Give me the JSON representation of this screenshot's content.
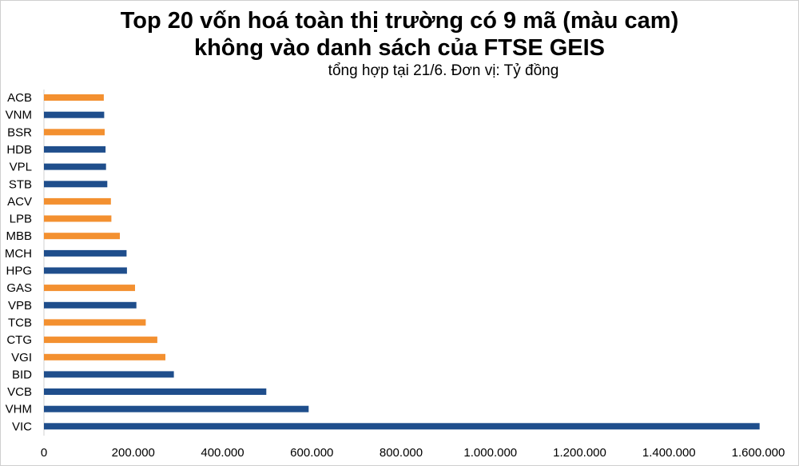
{
  "chart_data": {
    "type": "bar",
    "orientation": "horizontal",
    "title": "Top 20 vốn hoá toàn thị trường có 9 mã (màu cam)",
    "title_line2": "không vào danh sách của FTSE GEIS",
    "subtitle": "tổng hợp tại 21/6. Đơn vị: Tỷ đồng",
    "xlim": [
      0,
      1600000
    ],
    "xticks": [
      0,
      200000,
      400000,
      600000,
      800000,
      1000000,
      1200000,
      1400000,
      1600000
    ],
    "xtick_labels": [
      "0",
      "200.000",
      "400.000",
      "600.000",
      "800.000",
      "1.000.000",
      "1.200.000",
      "1.400.000",
      "1.600.000"
    ],
    "colors": {
      "in_list": "#1f4e8c",
      "not_in_list": "#f39030"
    },
    "categories": [
      "ACB",
      "VNM",
      "BSR",
      "HDB",
      "VPL",
      "STB",
      "ACV",
      "LPB",
      "MBB",
      "MCH",
      "HPG",
      "GAS",
      "VPB",
      "TCB",
      "CTG",
      "VGI",
      "BID",
      "VCB",
      "VHM",
      "VIC"
    ],
    "values": [
      134000,
      135000,
      136000,
      138000,
      139000,
      142000,
      150000,
      151000,
      170000,
      185000,
      186000,
      204000,
      207000,
      228000,
      254000,
      272000,
      291000,
      498000,
      593000,
      1603000
    ],
    "groups": [
      "not_in_list",
      "in_list",
      "not_in_list",
      "in_list",
      "in_list",
      "in_list",
      "not_in_list",
      "not_in_list",
      "not_in_list",
      "in_list",
      "in_list",
      "not_in_list",
      "in_list",
      "not_in_list",
      "not_in_list",
      "not_in_list",
      "in_list",
      "in_list",
      "in_list",
      "in_list"
    ]
  }
}
